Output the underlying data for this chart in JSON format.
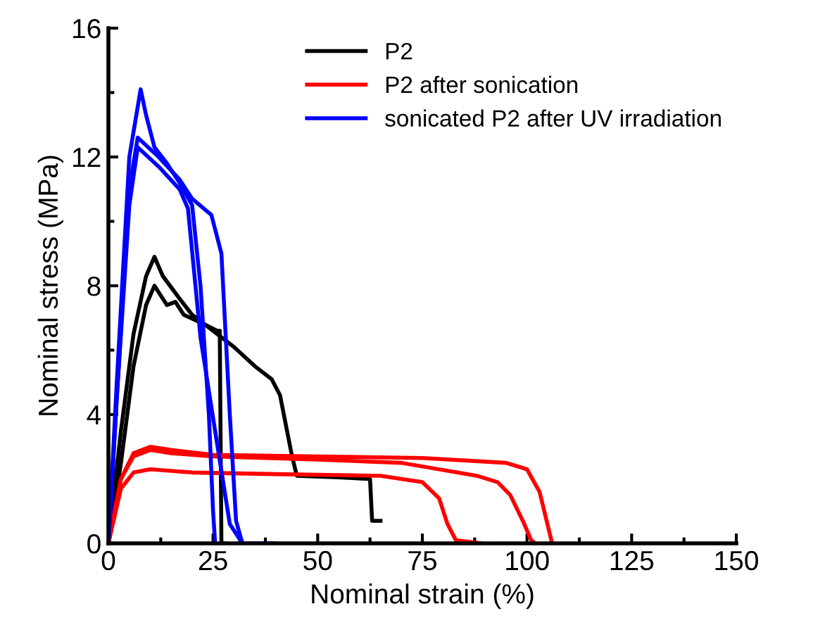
{
  "chart_data": {
    "type": "line",
    "xlabel": "Nominal strain (%)",
    "ylabel": "Nominal stress (MPa)",
    "xlim": [
      0,
      150
    ],
    "ylim": [
      0,
      16
    ],
    "xticks": [
      0,
      25,
      50,
      75,
      100,
      125,
      150
    ],
    "yticks": [
      0,
      4,
      8,
      12,
      16
    ],
    "grid": false,
    "legend": "top right",
    "marker": "none",
    "line_style": "solid",
    "series": [
      {
        "name": "P2",
        "color": "#000000",
        "x": [
          0,
          3,
          6,
          9,
          11,
          13,
          17,
          20,
          23,
          26,
          26.6,
          27,
          28
        ],
        "values": [
          0,
          3.5,
          6.5,
          8.3,
          8.9,
          8.3,
          7.6,
          7.1,
          6.8,
          6.6,
          6.6,
          0,
          0
        ]
      },
      {
        "color": "#000000",
        "x": [
          0,
          3,
          6,
          9,
          11,
          14,
          16,
          18,
          23,
          30,
          35,
          39,
          41,
          43.8,
          45,
          55,
          62.5,
          63,
          65
        ],
        "values": [
          0,
          2.5,
          5.5,
          7.4,
          8.0,
          7.4,
          7.5,
          7.1,
          6.8,
          6.1,
          5.5,
          5.1,
          4.6,
          2.75,
          2.1,
          2.05,
          2.0,
          0.7,
          0.7
        ]
      },
      {
        "name": "P2 after sonication",
        "color": "#ff0000",
        "x": [
          0,
          3,
          6,
          10,
          15,
          25,
          50,
          75,
          95,
          100,
          103,
          104.5,
          106
        ],
        "values": [
          0,
          2.0,
          2.8,
          3.0,
          2.9,
          2.75,
          2.7,
          2.65,
          2.5,
          2.3,
          1.6,
          0.8,
          0
        ]
      },
      {
        "color": "#ff0000",
        "x": [
          0,
          3,
          6,
          10,
          15,
          25,
          50,
          70,
          88,
          93,
          96,
          99,
          101,
          102
        ],
        "values": [
          0,
          2.0,
          2.7,
          2.9,
          2.8,
          2.7,
          2.6,
          2.5,
          2.1,
          1.9,
          1.5,
          0.7,
          0.1,
          0
        ]
      },
      {
        "color": "#ff0000",
        "x": [
          0,
          3,
          6,
          10,
          20,
          40,
          65,
          75,
          79,
          81,
          83,
          89
        ],
        "values": [
          0,
          1.7,
          2.2,
          2.3,
          2.2,
          2.15,
          2.1,
          1.9,
          1.4,
          0.6,
          0.1,
          0
        ]
      },
      {
        "name": "sonicated P2 after UV irradiation",
        "color": "#0000ff",
        "x": [
          0,
          2,
          5,
          7.7,
          9,
          11,
          14,
          17,
          20,
          22,
          24,
          25,
          25.5
        ],
        "values": [
          0,
          5,
          12,
          14.1,
          13.3,
          12.3,
          11.8,
          11.2,
          10.5,
          8,
          4,
          1,
          0
        ]
      },
      {
        "color": "#0000ff",
        "x": [
          0,
          2,
          5,
          7,
          12,
          17,
          20,
          24.6,
          27,
          29,
          30.5,
          32,
          40
        ],
        "values": [
          0,
          4.5,
          11,
          12.6,
          12.0,
          11.3,
          10.7,
          10.2,
          9,
          4,
          0.7,
          0,
          0
        ]
      },
      {
        "color": "#0000ff",
        "x": [
          0,
          2,
          5,
          7,
          12,
          17,
          19,
          22,
          25.6,
          29,
          32
        ],
        "values": [
          0,
          4.5,
          10.5,
          12.3,
          11.7,
          11.0,
          10.4,
          6.4,
          3.4,
          0.6,
          0
        ]
      }
    ]
  }
}
